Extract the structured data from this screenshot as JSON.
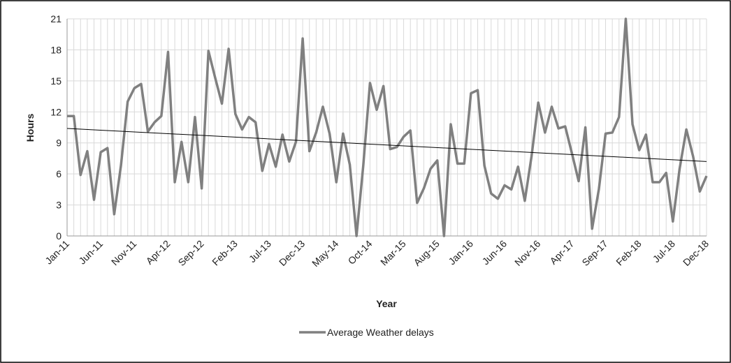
{
  "chart_data": {
    "type": "line",
    "y_label": "Hours",
    "x_label": "Year",
    "categories": [
      "Jan-11",
      null,
      null,
      null,
      null,
      "Jun-11",
      null,
      null,
      null,
      null,
      "Nov-11",
      null,
      null,
      null,
      null,
      "Apr-12",
      null,
      null,
      null,
      null,
      "Sep-12",
      null,
      null,
      null,
      null,
      "Feb-13",
      null,
      null,
      null,
      null,
      "Jul-13",
      null,
      null,
      null,
      null,
      "Dec-13",
      null,
      null,
      null,
      null,
      "May-14",
      null,
      null,
      null,
      null,
      "Oct-14",
      null,
      null,
      null,
      null,
      "Mar-15",
      null,
      null,
      null,
      null,
      "Aug-15",
      null,
      null,
      null,
      null,
      "Jan-16",
      null,
      null,
      null,
      null,
      "Jun-16",
      null,
      null,
      null,
      null,
      "Nov-16",
      null,
      null,
      null,
      null,
      "Apr-17",
      null,
      null,
      null,
      null,
      "Sep-17",
      null,
      null,
      null,
      null,
      "Feb-18",
      null,
      null,
      null,
      null,
      "Jul-18",
      null,
      null,
      null,
      null,
      "Dec-18"
    ],
    "series": [
      {
        "name": "Average Weather delays",
        "color": "#808080",
        "values": [
          11.6,
          11.6,
          5.9,
          8.2,
          3.5,
          8.1,
          8.5,
          2.1,
          6.8,
          13.0,
          14.3,
          14.7,
          10.1,
          11.0,
          11.6,
          17.8,
          5.2,
          9.1,
          5.2,
          11.5,
          4.6,
          17.9,
          15.3,
          12.8,
          18.1,
          11.8,
          10.3,
          11.5,
          11.0,
          6.3,
          8.9,
          6.7,
          9.8,
          7.2,
          9.1,
          19.1,
          8.2,
          10.0,
          12.5,
          9.9,
          5.2,
          9.9,
          6.9,
          0,
          6.8,
          14.8,
          12.2,
          14.5,
          8.4,
          8.6,
          9.6,
          10.2,
          3.2,
          4.6,
          6.5,
          7.3,
          0,
          10.8,
          7.0,
          7.0,
          13.8,
          14.1,
          6.8,
          4.1,
          3.6,
          4.9,
          4.5,
          6.7,
          3.4,
          7.7,
          12.9,
          10.0,
          12.5,
          10.4,
          10.6,
          8.0,
          5.3,
          10.5,
          0.7,
          4.5,
          9.9,
          10.0,
          11.5,
          21.0,
          10.8,
          8.3,
          9.8,
          5.2,
          5.2,
          6.1,
          1.4,
          6.5,
          10.3,
          7.7,
          4.3,
          5.8
        ]
      }
    ],
    "trendline": {
      "color": "#000000",
      "values": [
        10.4,
        7.2
      ]
    },
    "ylim": [
      0,
      21
    ],
    "yticks": [
      0,
      3,
      6,
      9,
      12,
      15,
      18,
      21
    ],
    "grid": true,
    "legend": "bottom"
  }
}
